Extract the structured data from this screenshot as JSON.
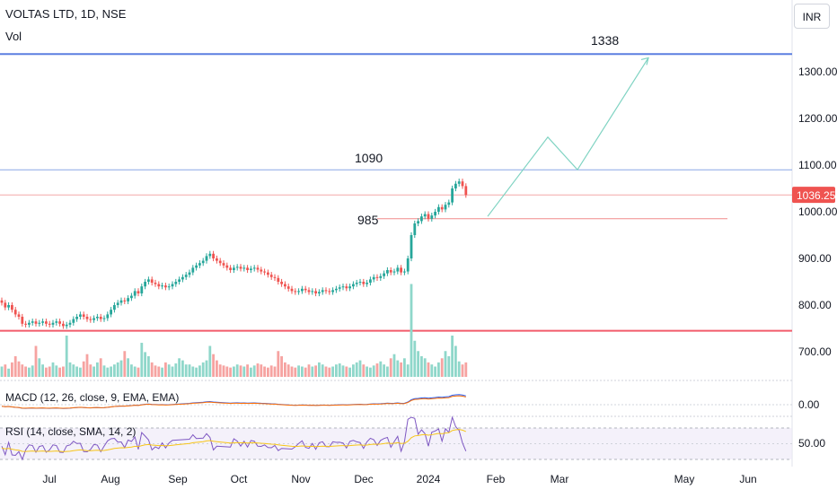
{
  "header": {
    "symbol": "VOLTAS LTD, 1D, NSE",
    "volume_label": "Vol",
    "currency": "INR"
  },
  "chart_data": {
    "type": "candlestick",
    "price_axis": {
      "ticks": [
        "1300.00",
        "1200.00",
        "1100.00",
        "1000.00",
        "900.00",
        "800.00",
        "700.00"
      ],
      "tick_values": [
        1300,
        1200,
        1100,
        1000,
        900,
        800,
        700
      ],
      "last_price": "1036.25",
      "last_price_value": 1036.25
    },
    "time_axis": {
      "labels": [
        "Jul",
        "Aug",
        "Sep",
        "Oct",
        "Nov",
        "Dec",
        "2024",
        "Feb",
        "Mar",
        "May",
        "Jun"
      ]
    },
    "closes": [
      805,
      795,
      800,
      790,
      780,
      775,
      760,
      758,
      762,
      765,
      760,
      762,
      765,
      760,
      758,
      762,
      765,
      760,
      755,
      758,
      762,
      770,
      775,
      780,
      775,
      770,
      768,
      772,
      775,
      770,
      772,
      780,
      790,
      800,
      805,
      810,
      808,
      815,
      820,
      830,
      825,
      840,
      850,
      855,
      848,
      845,
      840,
      842,
      838,
      840,
      845,
      850,
      855,
      860,
      865,
      870,
      880,
      885,
      890,
      895,
      905,
      910,
      900,
      895,
      890,
      885,
      880,
      875,
      880,
      882,
      878,
      880,
      875,
      878,
      880,
      876,
      872,
      870,
      865,
      860,
      858,
      850,
      845,
      840,
      835,
      830,
      828,
      830,
      835,
      832,
      828,
      830,
      825,
      828,
      832,
      830,
      828,
      832,
      835,
      838,
      840,
      836,
      840,
      845,
      848,
      850,
      845,
      848,
      855,
      860,
      858,
      862,
      868,
      875,
      870,
      872,
      880,
      870,
      872,
      900,
      950,
      975,
      980,
      990,
      995,
      985,
      992,
      1000,
      1010,
      1005,
      1015,
      1020,
      1050,
      1060,
      1065,
      1055,
      1036
    ],
    "volumes": [
      10,
      12,
      8,
      14,
      20,
      15,
      12,
      10,
      9,
      11,
      30,
      18,
      12,
      9,
      10,
      14,
      11,
      9,
      10,
      40,
      14,
      12,
      10,
      9,
      15,
      22,
      12,
      10,
      14,
      18,
      11,
      9,
      10,
      12,
      14,
      16,
      25,
      18,
      12,
      10,
      9,
      33,
      24,
      20,
      14,
      11,
      10,
      9,
      14,
      12,
      10,
      13,
      18,
      16,
      12,
      12,
      10,
      9,
      11,
      14,
      16,
      30,
      22,
      16,
      12,
      11,
      10,
      9,
      10,
      12,
      11,
      10,
      12,
      9,
      11,
      13,
      12,
      10,
      9,
      11,
      10,
      25,
      20,
      14,
      12,
      10,
      9,
      11,
      10,
      9,
      12,
      10,
      11,
      14,
      12,
      10,
      9,
      10,
      12,
      13,
      11,
      10,
      9,
      12,
      14,
      16,
      12,
      10,
      9,
      11,
      13,
      15,
      12,
      10,
      18,
      22,
      16,
      14,
      18,
      12,
      90,
      35,
      25,
      20,
      18,
      14,
      12,
      10,
      14,
      18,
      25,
      20,
      40,
      30,
      15,
      12,
      14
    ],
    "horizontal_levels": [
      {
        "label": "1338",
        "value": 1338,
        "color": "#5b7fe0"
      },
      {
        "label": "1090",
        "value": 1090,
        "color": "#8aa7e6"
      },
      {
        "label": "",
        "value": 1036,
        "color": "#f3a7a7"
      },
      {
        "label": "985",
        "value": 985,
        "color": "#f08a8a"
      },
      {
        "label": "",
        "value": 745,
        "color": "#f25c6b"
      }
    ],
    "projection": {
      "color": "#7fd3c2",
      "points": [
        {
          "date": "2024-01-27",
          "price": 990
        },
        {
          "date": "2024-02-22",
          "price": 1160
        },
        {
          "date": "2024-03-05",
          "price": 1090
        },
        {
          "date": "2024-04-10",
          "price": 1330
        }
      ]
    },
    "indicators": {
      "macd": {
        "label": "MACD (12, 26, close, 9, EMA, EMA)",
        "tick": "0.00"
      },
      "rsi": {
        "label": "RSI (14, close, SMA, 14, 2)",
        "tick": "50.00"
      }
    },
    "colors": {
      "up": "#26a69a",
      "down": "#ef5350",
      "vol_up": "#8fd7ca",
      "vol_down": "#f6a3a1"
    }
  }
}
